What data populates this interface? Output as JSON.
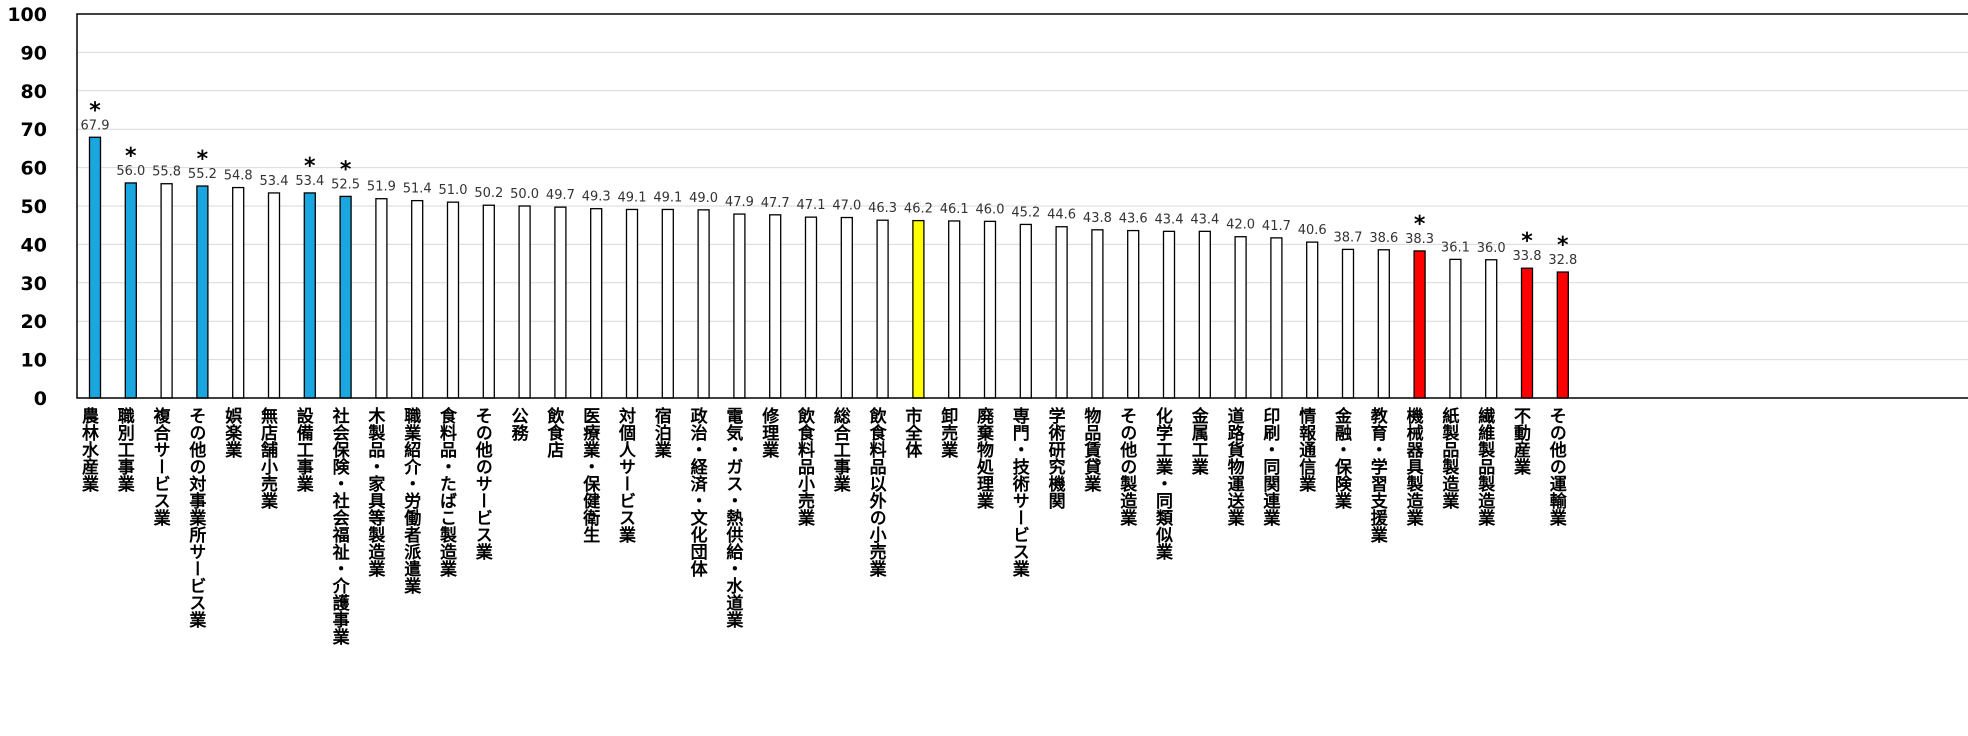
{
  "chart_data": {
    "type": "bar",
    "ylim": [
      0,
      100
    ],
    "yticks": [
      0,
      10,
      20,
      30,
      40,
      50,
      60,
      70,
      80,
      90,
      100
    ],
    "grid": true,
    "colors": {
      "high": "#1AA7E0",
      "low": "#FF0000",
      "overall": "#FFFF00",
      "normal": "#FFFFFF",
      "edge": "#000000"
    },
    "categories": [
      "農林水産業",
      "職別工事業",
      "複合サービス業",
      "その他の対事業所サービス業",
      "娯楽業",
      "無店舗小売業",
      "設備工事業",
      "社会保険・社会福祉・介護事業",
      "木製品・家具等製造業",
      "職業紹介・労働者派遣業",
      "食料品・たばこ製造業",
      "その他のサービス業",
      "公務",
      "飲食店",
      "医療業・保健衛生",
      "対個人サービス業",
      "宿泊業",
      "政治・経済・文化団体",
      "電気・ガス・熱供給・水道業",
      "修理業",
      "飲食料品小売業",
      "総合工事業",
      "飲食料品以外の小売業",
      "市全体",
      "卸売業",
      "廃棄物処理業",
      "専門・技術サービス業",
      "学術研究機関",
      "物品賃貸業",
      "その他の製造業",
      "化学工業・同類似業",
      "金属工業",
      "道路貨物運送業",
      "印刷・同関連業",
      "情報通信業",
      "金融・保険業",
      "教育・学習支援業",
      "機械器具製造業",
      "紙製品製造業",
      "繊維製品製造業",
      "不動産業",
      "その他の運輸業"
    ],
    "values": [
      67.9,
      56.0,
      55.8,
      55.2,
      54.8,
      53.4,
      53.4,
      52.5,
      51.9,
      51.4,
      51.0,
      50.2,
      50.0,
      49.7,
      49.3,
      49.1,
      49.1,
      49.0,
      47.9,
      47.7,
      47.1,
      47.0,
      46.3,
      46.2,
      46.1,
      46.0,
      45.2,
      44.6,
      43.8,
      43.6,
      43.4,
      43.4,
      42.0,
      41.7,
      40.6,
      38.7,
      38.6,
      38.3,
      36.1,
      36.0,
      33.8,
      32.8
    ],
    "value_labels": [
      "67.9",
      "56.0",
      "55.8",
      "55.2",
      "54.8",
      "53.4",
      "53.4",
      "52.5",
      "51.9",
      "51.4",
      "51.0",
      "50.2",
      "50.0",
      "49.7",
      "49.3",
      "49.1",
      "49.1",
      "49.0",
      "47.9",
      "47.7",
      "47.1",
      "47.0",
      "46.3",
      "46.2",
      "46.1",
      "46.0",
      "45.2",
      "44.6",
      "43.8",
      "43.6",
      "43.4",
      "43.4",
      "42.0",
      "41.7",
      "40.6",
      "38.7",
      "38.6",
      "38.3",
      "36.1",
      "36.0",
      "33.8",
      "32.8"
    ],
    "highlight": [
      "high",
      "high",
      "normal",
      "high",
      "normal",
      "normal",
      "high",
      "high",
      "normal",
      "normal",
      "normal",
      "normal",
      "normal",
      "normal",
      "normal",
      "normal",
      "normal",
      "normal",
      "normal",
      "normal",
      "normal",
      "normal",
      "normal",
      "overall",
      "normal",
      "normal",
      "normal",
      "normal",
      "normal",
      "normal",
      "normal",
      "normal",
      "normal",
      "normal",
      "normal",
      "normal",
      "normal",
      "low",
      "normal",
      "normal",
      "low",
      "low"
    ],
    "significant": [
      true,
      true,
      false,
      true,
      false,
      false,
      true,
      true,
      false,
      false,
      false,
      false,
      false,
      false,
      false,
      false,
      false,
      false,
      false,
      false,
      false,
      false,
      false,
      false,
      false,
      false,
      false,
      false,
      false,
      false,
      false,
      false,
      false,
      false,
      false,
      false,
      false,
      true,
      false,
      false,
      true,
      true
    ],
    "significance_marker": "*"
  }
}
